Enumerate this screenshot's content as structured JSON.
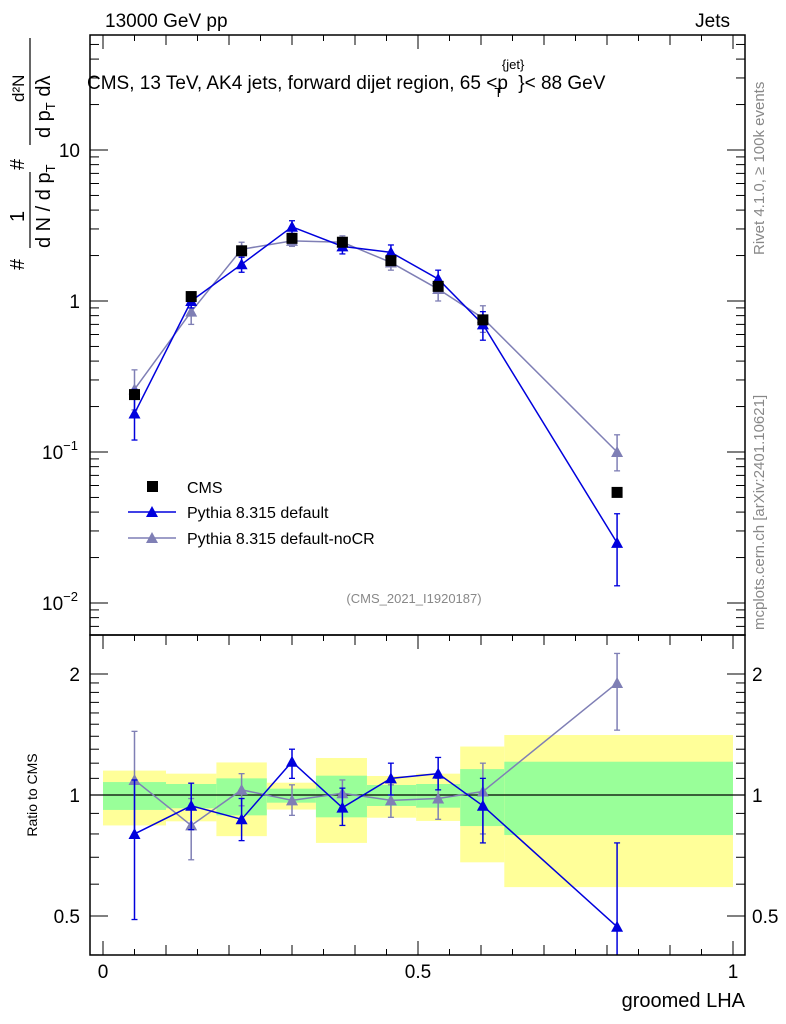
{
  "header": {
    "left": "13000 GeV pp",
    "right": "Jets"
  },
  "side_text": {
    "rivet": "Rivet 4.1.0, ≥ 100k events",
    "mcplots": "mcplots.cern.ch [arXiv:2401.10621]"
  },
  "chart_data": [
    {
      "type": "line",
      "title": "CMS, 13 TeV, AK4 jets, forward dijet region, 65 < p_T^{jet} < 88 GeV",
      "title_parts": {
        "main": "CMS, 13 TeV, AK4 jets, forward dijet region, 65 <p",
        "sup": "{jet}",
        "sub": "T",
        "end": "}< 88 GeV"
      },
      "analysis": "(CMS_2021_I1920187)",
      "ylabel": "1/(dN/dp_T) d²N/(dp_T dλ)",
      "ylabel_parts": {
        "num1": "1",
        "den1": "d N / d p",
        "den1_sub": "T",
        "num2": "d²N",
        "den2": "d p",
        "den2_sub": "T",
        "den2_end": " dλ",
        "hash": "#"
      },
      "yscale": "log",
      "ylim": [
        0.0062,
        57
      ],
      "yticks": [
        {
          "v": 0.01,
          "base": "10",
          "exp": "−2"
        },
        {
          "v": 0.1,
          "base": "10",
          "exp": "−1"
        },
        {
          "v": 1,
          "base": "1",
          "exp": ""
        },
        {
          "v": 10,
          "base": "10",
          "exp": ""
        }
      ],
      "x": [
        0.05,
        0.14,
        0.22,
        0.3,
        0.38,
        0.457,
        0.532,
        0.603,
        0.816
      ],
      "legend": {
        "placement": "lower-left"
      },
      "series": [
        {
          "name": "CMS",
          "color": "#000000",
          "marker": "square",
          "values": [
            0.24,
            1.07,
            2.15,
            2.6,
            2.45,
            1.85,
            1.25,
            0.75,
            0.054
          ]
        },
        {
          "name": "Pythia 8.315 default",
          "color": "#0000dd",
          "marker": "triangle",
          "values": [
            0.18,
            1.0,
            1.75,
            3.1,
            2.3,
            2.1,
            1.4,
            0.7,
            0.025
          ],
          "err_lo": [
            0.12,
            0.9,
            1.55,
            2.8,
            2.05,
            1.85,
            1.2,
            0.55,
            0.013
          ],
          "err_hi": [
            0.26,
            1.1,
            1.95,
            3.4,
            2.55,
            2.35,
            1.6,
            0.85,
            0.039
          ]
        },
        {
          "name": "Pythia 8.315 default-noCR",
          "color": "#7f7fb5",
          "marker": "triangle",
          "values": [
            0.26,
            0.85,
            2.2,
            2.5,
            2.45,
            1.8,
            1.2,
            0.77,
            0.1
          ],
          "err_lo": [
            0.19,
            0.7,
            1.95,
            2.3,
            2.2,
            1.6,
            1.0,
            0.62,
            0.075
          ],
          "err_hi": [
            0.35,
            1.0,
            2.45,
            2.75,
            2.7,
            2.0,
            1.4,
            0.93,
            0.13
          ]
        }
      ]
    },
    {
      "type": "line",
      "ylabel": "Ratio to CMS",
      "xlabel": "groomed LHA",
      "yscale": "log",
      "ylim": [
        0.4,
        2.5
      ],
      "xlim": [
        -0.02,
        1.02
      ],
      "xticks": [
        {
          "v": 0,
          "label": "0"
        },
        {
          "v": 0.5,
          "label": "0.5"
        },
        {
          "v": 1,
          "label": "1"
        }
      ],
      "yticks": [
        {
          "v": 0.5,
          "label": "0.5"
        },
        {
          "v": 1,
          "label": "1"
        },
        {
          "v": 2,
          "label": "2"
        }
      ],
      "bin_edges": [
        0,
        0.1,
        0.18,
        0.26,
        0.338,
        0.419,
        0.497,
        0.567,
        0.637,
        1.0
      ],
      "band_total": {
        "color": "#ffff99",
        "lo": [
          0.84,
          0.86,
          0.79,
          0.92,
          0.76,
          0.878,
          0.862,
          0.68,
          0.59
        ],
        "hi": [
          1.15,
          1.13,
          1.205,
          1.073,
          1.236,
          1.115,
          1.13,
          1.32,
          1.41
        ]
      },
      "band_stat": {
        "color": "#99ff99",
        "lo": [
          0.918,
          0.927,
          0.89,
          0.957,
          0.88,
          0.939,
          0.93,
          0.837,
          0.795
        ],
        "hi": [
          1.077,
          1.065,
          1.1,
          1.037,
          1.117,
          1.059,
          1.065,
          1.16,
          1.21
        ]
      },
      "x": [
        0.05,
        0.14,
        0.22,
        0.3,
        0.38,
        0.457,
        0.532,
        0.603,
        0.816
      ],
      "series": [
        {
          "name": "Pythia 8.315 default",
          "color": "#0000dd",
          "values": [
            0.8,
            0.94,
            0.87,
            1.21,
            0.93,
            1.1,
            1.13,
            0.94,
            0.47
          ],
          "err_lo": [
            0.49,
            0.82,
            0.77,
            1.1,
            0.84,
            1.0,
            1.03,
            0.76,
            0.35
          ],
          "err_hi": [
            1.09,
            1.07,
            0.98,
            1.3,
            1.04,
            1.2,
            1.24,
            1.1,
            0.76
          ]
        },
        {
          "name": "Pythia 8.315 default-noCR",
          "color": "#7f7fb5",
          "values": [
            1.09,
            0.84,
            1.03,
            0.97,
            1.01,
            0.97,
            0.98,
            1.02,
            1.9
          ],
          "err_lo": [
            0.8,
            0.69,
            0.94,
            0.89,
            0.93,
            0.88,
            0.87,
            0.8,
            1.45
          ],
          "err_hi": [
            1.44,
            0.98,
            1.13,
            1.06,
            1.09,
            1.06,
            1.1,
            1.2,
            2.25
          ]
        }
      ]
    }
  ]
}
